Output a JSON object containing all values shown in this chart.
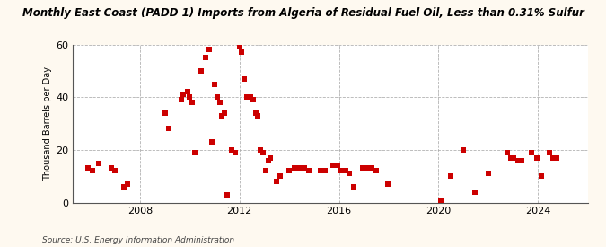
{
  "title": "Monthly East Coast (PADD 1) Imports from Algeria of Residual Fuel Oil, Less than 0.31% Sulfur",
  "ylabel": "Thousand Barrels per Day",
  "source": "Source: U.S. Energy Information Administration",
  "background_color": "#fef9f0",
  "plot_bg_color": "#ffffff",
  "marker_color": "#cc0000",
  "marker_size": 16,
  "xlim": [
    2005.3,
    2026.0
  ],
  "ylim": [
    0,
    60
  ],
  "yticks": [
    0,
    20,
    40,
    60
  ],
  "xticks": [
    2008,
    2012,
    2016,
    2020,
    2024
  ],
  "data_points": [
    [
      2005.9,
      13
    ],
    [
      2006.1,
      12
    ],
    [
      2006.35,
      15
    ],
    [
      2006.85,
      13
    ],
    [
      2007.0,
      12
    ],
    [
      2007.35,
      6
    ],
    [
      2007.5,
      7
    ],
    [
      2009.0,
      34
    ],
    [
      2009.15,
      28
    ],
    [
      2009.65,
      39
    ],
    [
      2009.75,
      41
    ],
    [
      2009.9,
      42
    ],
    [
      2010.0,
      40
    ],
    [
      2010.1,
      38
    ],
    [
      2010.2,
      19
    ],
    [
      2010.45,
      50
    ],
    [
      2010.65,
      55
    ],
    [
      2010.78,
      58
    ],
    [
      2010.9,
      23
    ],
    [
      2011.0,
      45
    ],
    [
      2011.1,
      40
    ],
    [
      2011.2,
      38
    ],
    [
      2011.3,
      33
    ],
    [
      2011.4,
      34
    ],
    [
      2011.5,
      3
    ],
    [
      2011.7,
      20
    ],
    [
      2011.82,
      19
    ],
    [
      2012.0,
      59
    ],
    [
      2012.1,
      57
    ],
    [
      2012.2,
      47
    ],
    [
      2012.3,
      40
    ],
    [
      2012.45,
      40
    ],
    [
      2012.55,
      39
    ],
    [
      2012.65,
      34
    ],
    [
      2012.75,
      33
    ],
    [
      2012.85,
      20
    ],
    [
      2012.95,
      19
    ],
    [
      2013.05,
      12
    ],
    [
      2013.15,
      16
    ],
    [
      2013.25,
      17
    ],
    [
      2013.5,
      8
    ],
    [
      2013.65,
      10
    ],
    [
      2014.0,
      12
    ],
    [
      2014.2,
      13
    ],
    [
      2014.4,
      13
    ],
    [
      2014.6,
      13
    ],
    [
      2014.8,
      12
    ],
    [
      2015.25,
      12
    ],
    [
      2015.45,
      12
    ],
    [
      2015.75,
      14
    ],
    [
      2015.95,
      14
    ],
    [
      2016.1,
      12
    ],
    [
      2016.25,
      12
    ],
    [
      2016.4,
      11
    ],
    [
      2016.6,
      6
    ],
    [
      2016.95,
      13
    ],
    [
      2017.15,
      13
    ],
    [
      2017.3,
      13
    ],
    [
      2017.5,
      12
    ],
    [
      2017.95,
      7
    ],
    [
      2020.1,
      1
    ],
    [
      2020.5,
      10
    ],
    [
      2021.0,
      20
    ],
    [
      2021.45,
      4
    ],
    [
      2022.0,
      11
    ],
    [
      2022.75,
      19
    ],
    [
      2022.9,
      17
    ],
    [
      2023.0,
      17
    ],
    [
      2023.2,
      16
    ],
    [
      2023.35,
      16
    ],
    [
      2023.75,
      19
    ],
    [
      2023.95,
      17
    ],
    [
      2024.15,
      10
    ],
    [
      2024.45,
      19
    ],
    [
      2024.6,
      17
    ],
    [
      2024.75,
      17
    ]
  ]
}
